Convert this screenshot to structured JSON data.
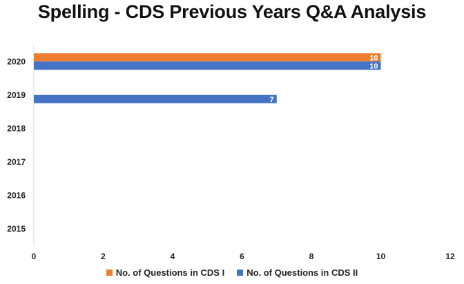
{
  "chart_data": {
    "type": "bar",
    "orientation": "horizontal",
    "title": "Spelling - CDS Previous Years Q&A Analysis",
    "categories": [
      "2020",
      "2019",
      "2018",
      "2017",
      "2016",
      "2015"
    ],
    "series": [
      {
        "name": "No. of Questions in CDS I",
        "color": "#ED7D31",
        "values": [
          10,
          null,
          null,
          null,
          null,
          null
        ]
      },
      {
        "name": "No. of Questions in CDS II",
        "color": "#4472C4",
        "values": [
          10,
          7,
          null,
          null,
          null,
          null
        ]
      }
    ],
    "xlim": [
      0,
      12
    ],
    "xticks": [
      0,
      2,
      4,
      6,
      8,
      10,
      12
    ],
    "grid": false,
    "legend_position": "bottom",
    "data_labels": true
  }
}
